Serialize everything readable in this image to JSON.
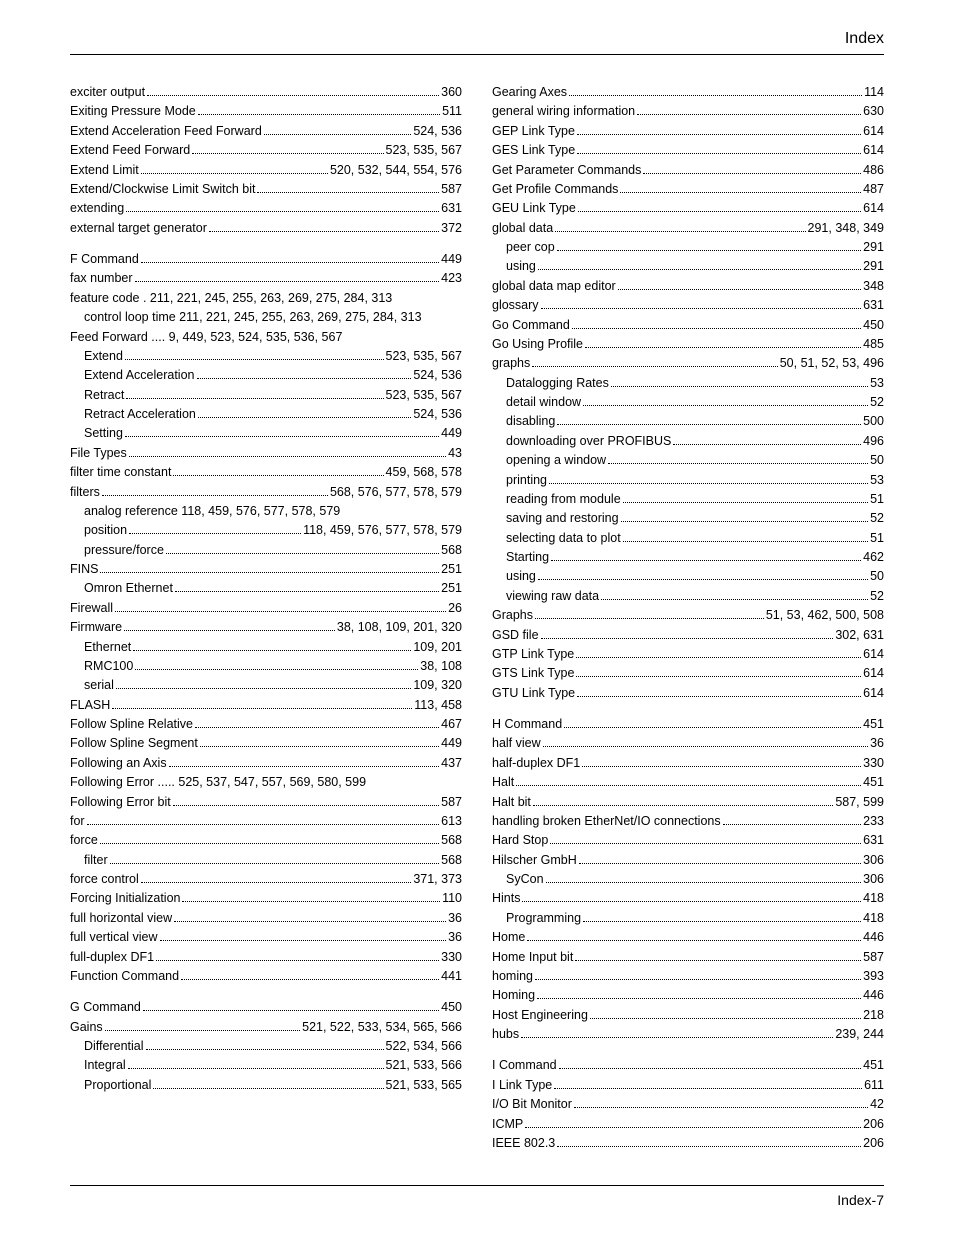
{
  "header": {
    "title": "Index"
  },
  "footer": {
    "page": "Index-7"
  },
  "left": [
    {
      "term": "exciter output",
      "pages": "360"
    },
    {
      "term": "Exiting Pressure Mode",
      "pages": "511"
    },
    {
      "term": "Extend Acceleration Feed Forward",
      "pages": "524, 536"
    },
    {
      "term": "Extend Feed Forward",
      "pages": "523, 535, 567"
    },
    {
      "term": "Extend Limit",
      "pages": "520, 532, 544, 554, 576"
    },
    {
      "term": "Extend/Clockwise Limit Switch bit",
      "pages": "587"
    },
    {
      "term": "extending",
      "pages": "631"
    },
    {
      "term": "external target generator",
      "pages": "372"
    },
    {
      "spacer": true
    },
    {
      "term": "F Command",
      "pages": "449"
    },
    {
      "term": "fax number",
      "pages": "423"
    },
    {
      "wrap": "feature code . 211, 221, 245, 255, 263, 269, 275, 284, 313"
    },
    {
      "indent": 1,
      "wrap": "control loop time 211, 221, 245, 255, 263, 269, 275, 284, 313"
    },
    {
      "term": "Feed Forward .... 9, 449, 523, 524, 535, 536, 567",
      "nopages": true
    },
    {
      "indent": 1,
      "term": "Extend",
      "pages": "523, 535, 567"
    },
    {
      "indent": 1,
      "term": "Extend Acceleration",
      "pages": "524, 536"
    },
    {
      "indent": 1,
      "term": "Retract",
      "pages": "523, 535, 567"
    },
    {
      "indent": 1,
      "term": "Retract Acceleration",
      "pages": "524, 536"
    },
    {
      "indent": 1,
      "term": "Setting",
      "pages": "449"
    },
    {
      "term": "File Types",
      "pages": "43"
    },
    {
      "term": "filter time constant",
      "pages": "459, 568, 578"
    },
    {
      "term": "filters",
      "pages": "568, 576, 577, 578, 579"
    },
    {
      "indent": 1,
      "term": "analog reference 118, 459, 576, 577, 578, 579",
      "nopages": true
    },
    {
      "indent": 1,
      "term": "position",
      "pages": "118, 459, 576, 577, 578, 579"
    },
    {
      "indent": 1,
      "term": "pressure/force",
      "pages": "568"
    },
    {
      "term": "FINS",
      "pages": "251"
    },
    {
      "indent": 1,
      "term": "Omron Ethernet",
      "pages": "251"
    },
    {
      "term": "Firewall",
      "pages": "26"
    },
    {
      "term": "Firmware",
      "pages": "38, 108, 109, 201, 320"
    },
    {
      "indent": 1,
      "term": "Ethernet",
      "pages": "109, 201"
    },
    {
      "indent": 1,
      "term": "RMC100",
      "pages": "38, 108"
    },
    {
      "indent": 1,
      "term": "serial",
      "pages": "109, 320"
    },
    {
      "term": "FLASH",
      "pages": "113, 458"
    },
    {
      "term": "Follow Spline Relative",
      "pages": "467"
    },
    {
      "term": "Follow Spline Segment",
      "pages": "449"
    },
    {
      "term": "Following an Axis",
      "pages": "437"
    },
    {
      "wrap": "Following Error ..... 525, 537, 547, 557, 569, 580, 599"
    },
    {
      "term": "Following Error bit",
      "pages": "587"
    },
    {
      "term": "for",
      "pages": "613"
    },
    {
      "term": "force",
      "pages": "568"
    },
    {
      "indent": 1,
      "term": "filter",
      "pages": "568"
    },
    {
      "term": "force control",
      "pages": "371, 373"
    },
    {
      "term": "Forcing Initialization",
      "pages": "110"
    },
    {
      "term": "full horizontal view",
      "pages": "36"
    },
    {
      "term": "full vertical view",
      "pages": "36"
    },
    {
      "term": "full-duplex DF1",
      "pages": "330"
    },
    {
      "term": "Function Command",
      "pages": "441"
    },
    {
      "spacer": true
    },
    {
      "term": "G Command",
      "pages": "450"
    },
    {
      "term": "Gains",
      "pages": "521, 522, 533, 534, 565, 566"
    },
    {
      "indent": 1,
      "term": "Differential",
      "pages": "522, 534, 566"
    },
    {
      "indent": 1,
      "term": "Integral",
      "pages": "521, 533, 566"
    },
    {
      "indent": 1,
      "term": "Proportional",
      "pages": "521, 533, 565"
    }
  ],
  "right": [
    {
      "term": "Gearing Axes",
      "pages": "114"
    },
    {
      "term": "general wiring information",
      "pages": "630"
    },
    {
      "term": "GEP Link Type",
      "pages": "614"
    },
    {
      "term": "GES Link Type",
      "pages": "614"
    },
    {
      "term": "Get Parameter Commands",
      "pages": "486"
    },
    {
      "term": "Get Profile Commands",
      "pages": "487"
    },
    {
      "term": "GEU Link Type",
      "pages": "614"
    },
    {
      "term": "global data",
      "pages": "291, 348, 349"
    },
    {
      "indent": 1,
      "term": "peer cop",
      "pages": "291"
    },
    {
      "indent": 1,
      "term": "using",
      "pages": "291"
    },
    {
      "term": "global data map editor",
      "pages": "348"
    },
    {
      "term": "glossary",
      "pages": "631"
    },
    {
      "term": "Go Command",
      "pages": "450"
    },
    {
      "term": "Go Using Profile",
      "pages": "485"
    },
    {
      "term": "graphs",
      "pages": "50, 51, 52, 53, 496"
    },
    {
      "indent": 1,
      "term": "Datalogging Rates",
      "pages": "53"
    },
    {
      "indent": 1,
      "term": "detail window",
      "pages": "52"
    },
    {
      "indent": 1,
      "term": "disabling",
      "pages": "500"
    },
    {
      "indent": 1,
      "term": "downloading over PROFIBUS",
      "pages": "496"
    },
    {
      "indent": 1,
      "term": "opening a window",
      "pages": "50"
    },
    {
      "indent": 1,
      "term": "printing",
      "pages": "53"
    },
    {
      "indent": 1,
      "term": "reading from module",
      "pages": "51"
    },
    {
      "indent": 1,
      "term": "saving and restoring",
      "pages": "52"
    },
    {
      "indent": 1,
      "term": "selecting data to plot",
      "pages": "51"
    },
    {
      "indent": 1,
      "term": "Starting",
      "pages": "462"
    },
    {
      "indent": 1,
      "term": "using",
      "pages": "50"
    },
    {
      "indent": 1,
      "term": "viewing raw data",
      "pages": "52"
    },
    {
      "term": "Graphs",
      "pages": "51, 53, 462, 500, 508"
    },
    {
      "term": "GSD file",
      "pages": "302, 631"
    },
    {
      "term": "GTP Link Type",
      "pages": "614"
    },
    {
      "term": "GTS Link Type",
      "pages": "614"
    },
    {
      "term": "GTU Link Type",
      "pages": "614"
    },
    {
      "spacer": true
    },
    {
      "term": "H Command",
      "pages": "451"
    },
    {
      "term": "half view",
      "pages": "36"
    },
    {
      "term": "half-duplex DF1",
      "pages": "330"
    },
    {
      "term": "Halt",
      "pages": "451"
    },
    {
      "term": "Halt bit",
      "pages": "587, 599"
    },
    {
      "term": "handling broken EtherNet/IO connections",
      "pages": "233"
    },
    {
      "term": "Hard Stop",
      "pages": "631"
    },
    {
      "term": "Hilscher GmbH",
      "pages": "306"
    },
    {
      "indent": 1,
      "term": "SyCon",
      "pages": "306"
    },
    {
      "term": "Hints",
      "pages": "418"
    },
    {
      "indent": 1,
      "term": "Programming",
      "pages": "418"
    },
    {
      "term": "Home",
      "pages": "446"
    },
    {
      "term": "Home Input bit",
      "pages": "587"
    },
    {
      "term": "homing",
      "pages": "393"
    },
    {
      "term": "Homing",
      "pages": "446"
    },
    {
      "term": "Host Engineering",
      "pages": "218"
    },
    {
      "term": "hubs",
      "pages": "239, 244"
    },
    {
      "spacer": true
    },
    {
      "term": "I Command",
      "pages": "451"
    },
    {
      "term": "I Link Type",
      "pages": "611"
    },
    {
      "term": "I/O Bit Monitor",
      "pages": "42"
    },
    {
      "term": "ICMP",
      "pages": "206"
    },
    {
      "term": "IEEE 802.3",
      "pages": "206"
    }
  ]
}
